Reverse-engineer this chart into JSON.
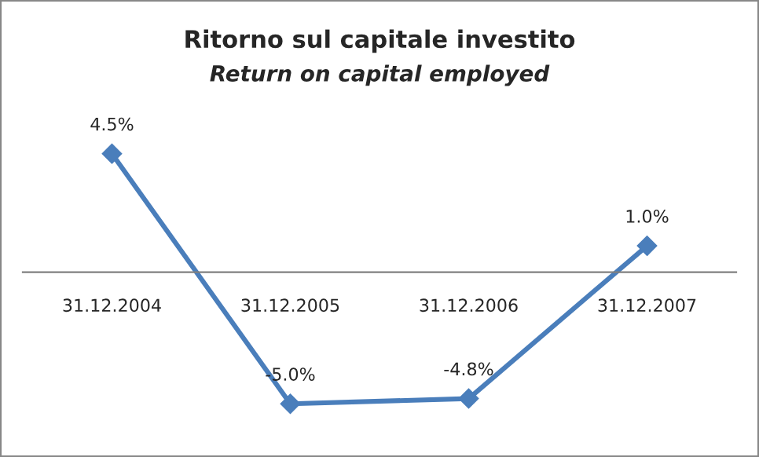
{
  "chart_data": {
    "type": "line",
    "title": "Ritorno sul capitale investito",
    "subtitle": "Return on capital employed",
    "categories": [
      "31.12.2004",
      "31.12.2005",
      "31.12.2006",
      "31.12.2007"
    ],
    "series": [
      {
        "color": "#4a7ebb",
        "values": [
          4.5,
          -5.0,
          -4.8,
          1.0
        ],
        "value_labels": [
          "4.5%",
          "-5.0%",
          "-4.8%",
          "1.0%"
        ]
      }
    ],
    "marker": "diamond",
    "line_style": "solid",
    "tick_labels": "x",
    "grid": false,
    "legend": false
  }
}
